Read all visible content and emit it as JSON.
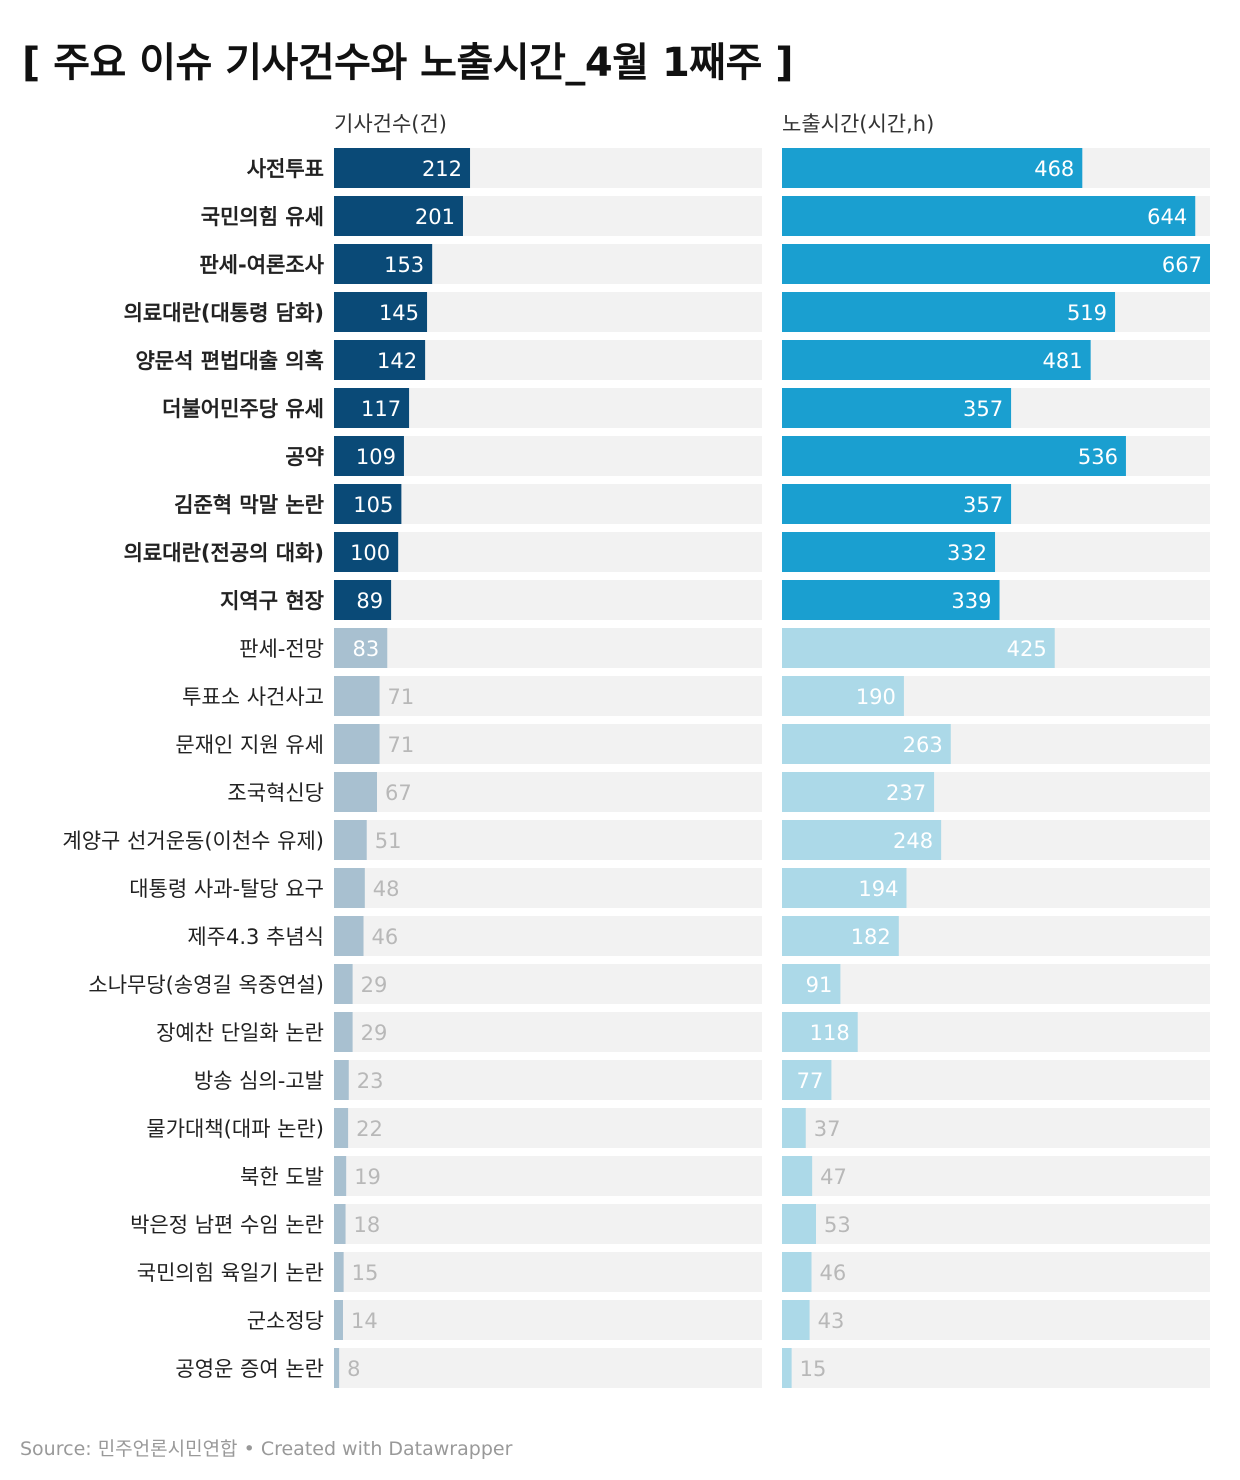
{
  "title": "[ 주요 이슈 기사건수와 노출시간_4월 1째주 ]",
  "source_text": "Source: 민주언론시민연합 • Created with Datawrapper",
  "colors": {
    "articles_highlight": "#0a4a77",
    "articles_normal": "#a8c0d0",
    "exposure_highlight": "#1a9fd0",
    "exposure_normal": "#acd9e8",
    "track": "#f2f2f2",
    "label_inside": "#ffffff",
    "label_outside": "#b8b8b8"
  },
  "chart_data": {
    "type": "bar",
    "categories": [
      "사전투표",
      "국민의힘 유세",
      "판세-여론조사",
      "의료대란(대통령 담화)",
      "양문석 편법대출 의혹",
      "더불어민주당 유세",
      "공약",
      "김준혁 막말 논란",
      "의료대란(전공의 대화)",
      "지역구 현장",
      "판세-전망",
      "투표소 사건사고",
      "문재인 지원 유세",
      "조국혁신당",
      "계양구 선거운동(이천수 유제)",
      "대통령 사과-탈당 요구",
      "제주4.3 추념식",
      "소나무당(송영길 옥중연설)",
      "장예찬 단일화 논란",
      "방송 심의-고발",
      "물가대책(대파 논란)",
      "북한 도발",
      "박은정 남편 수임 논란",
      "국민의힘 육일기 논란",
      "군소정당",
      "공영운 증여 논란"
    ],
    "highlighted_count": 10,
    "series": [
      {
        "name": "기사건수(건)",
        "values": [
          212,
          201,
          153,
          145,
          142,
          117,
          109,
          105,
          100,
          89,
          83,
          71,
          71,
          67,
          51,
          48,
          46,
          29,
          29,
          23,
          22,
          19,
          18,
          15,
          14,
          8
        ],
        "xlim": [
          0,
          667
        ]
      },
      {
        "name": "노출시간(시간,h)",
        "values": [
          468,
          644,
          667,
          519,
          481,
          357,
          536,
          357,
          332,
          339,
          425,
          190,
          263,
          237,
          248,
          194,
          182,
          91,
          118,
          77,
          37,
          47,
          53,
          46,
          43,
          15
        ],
        "xlim": [
          0,
          667
        ]
      }
    ]
  }
}
